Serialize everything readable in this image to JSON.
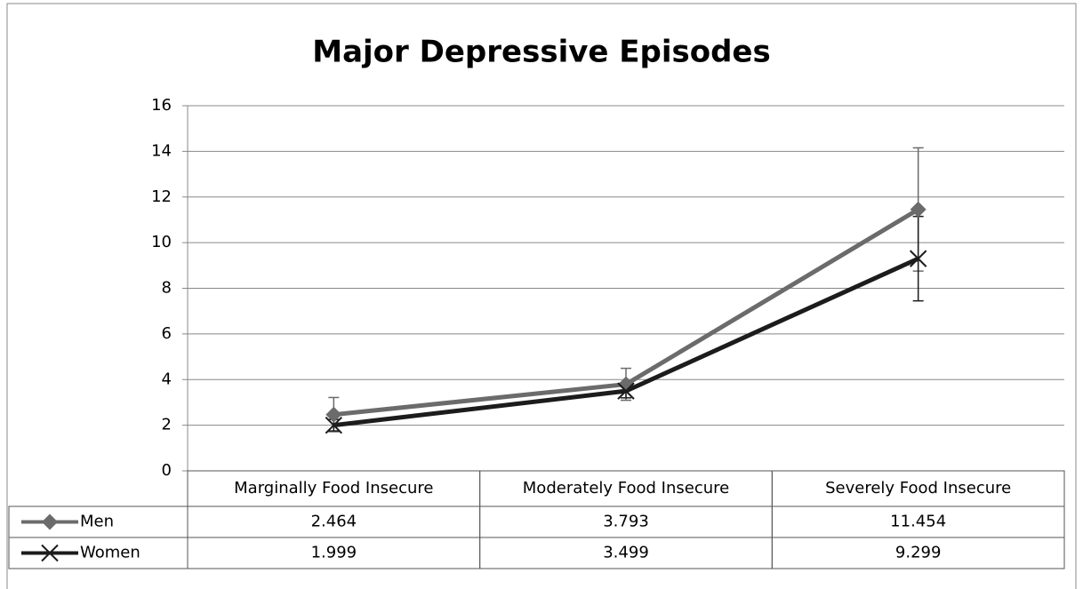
{
  "chart_data": {
    "type": "line",
    "title": "Major Depressive Episodes",
    "categories": [
      "Marginally Food Insecure",
      "Moderately Food Insecure",
      "Severely Food Insecure"
    ],
    "series": [
      {
        "name": "Men",
        "color": "#6b6b6b",
        "marker": "diamond",
        "values": [
          2.464,
          3.793,
          11.454
        ],
        "errors": [
          0.75,
          0.7,
          2.7
        ]
      },
      {
        "name": "Women",
        "color": "#1c1c1c",
        "marker": "x",
        "values": [
          1.999,
          3.499,
          9.299
        ],
        "errors": [
          0.25,
          0.3,
          1.85
        ]
      }
    ],
    "ylim": [
      0,
      16
    ],
    "yticks": [
      0,
      2,
      4,
      6,
      8,
      10,
      12,
      14,
      16
    ],
    "grid": true,
    "data_table": true
  }
}
